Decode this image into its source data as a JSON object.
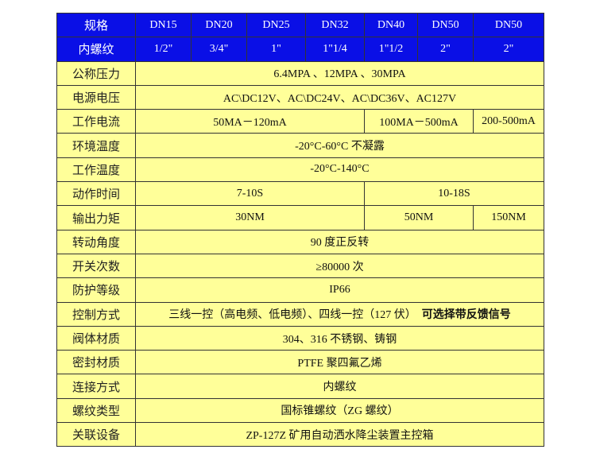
{
  "header": {
    "row1": [
      "规格",
      "DN15",
      "DN20",
      "DN25",
      "DN32",
      "DN40",
      "DN50",
      "DN50"
    ],
    "row2": [
      "内螺纹",
      "1/2\"",
      "3/4\"",
      "1\"",
      "1\"1/4",
      "1\"1/2",
      "2\"",
      "2\""
    ]
  },
  "rows": {
    "pressure": {
      "label": "公称压力",
      "value": "6.4MPA 、12MPA 、30MPA"
    },
    "voltage": {
      "label": "电源电压",
      "value": "AC\\DC12V、AC\\DC24V、AC\\DC36V、AC127V"
    },
    "current": {
      "label": "工作电流",
      "v1": "50MA－120mA",
      "v2": "100MA－500mA",
      "v3": "200-500mA"
    },
    "ambient_temp": {
      "label": "环境温度",
      "value": "-20°C-60°C 不凝露"
    },
    "work_temp": {
      "label": "工作温度",
      "value": "-20°C-140°C"
    },
    "action_time": {
      "label": "动作时间",
      "v1": "7-10S",
      "v2": "10-18S"
    },
    "torque": {
      "label": "输出力矩",
      "v1": "30NM",
      "v2": "50NM",
      "v3": "150NM"
    },
    "angle": {
      "label": "转动角度",
      "value": "90 度正反转"
    },
    "cycles": {
      "label": "开关次数",
      "value": "≥80000 次"
    },
    "protection": {
      "label": "防护等级",
      "value": "IP66"
    },
    "control": {
      "label": "控制方式",
      "value": "三线一控（高电频、低电频）、四线一控（127 伏）",
      "bold": "可选择带反馈信号"
    },
    "body_material": {
      "label": "阀体材质",
      "value": "304、316 不锈钢、铸钢"
    },
    "seal_material": {
      "label": "密封材质",
      "value": "PTFE 聚四氟乙烯"
    },
    "connection": {
      "label": "连接方式",
      "value": "内螺纹"
    },
    "thread_type": {
      "label": "螺纹类型",
      "value": "国标锥螺纹（ZG 螺纹）"
    },
    "related_device": {
      "label": "关联设备",
      "value": "ZP-127Z 矿用自动洒水降尘装置主控箱"
    }
  },
  "colors": {
    "header_bg": "#0a0fe6",
    "body_bg": "#ffff99"
  }
}
